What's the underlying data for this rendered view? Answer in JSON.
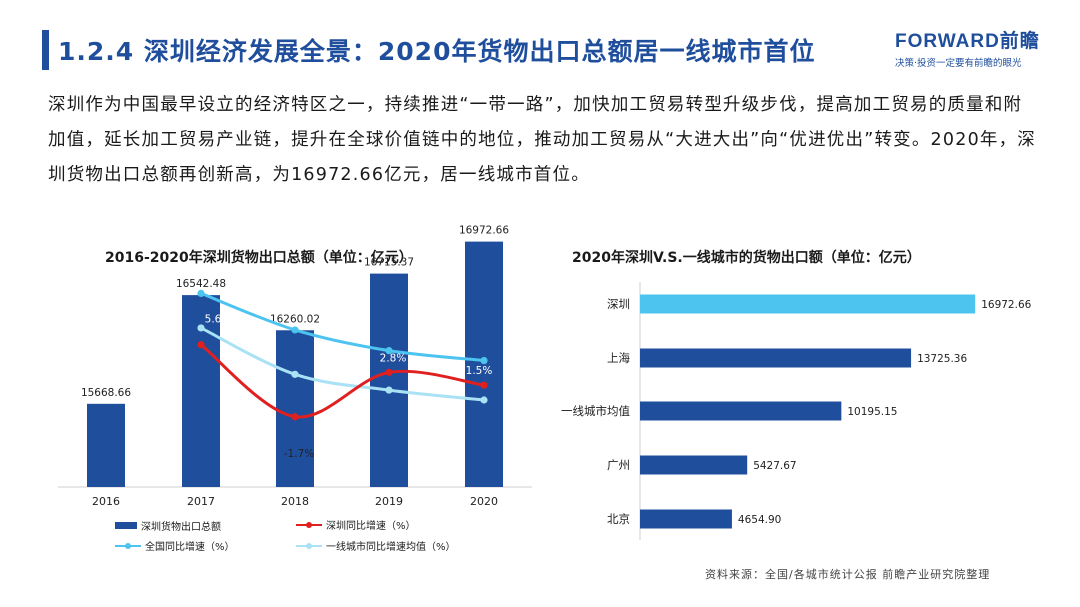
{
  "header": {
    "title": "1.2.4 深圳经济发展全景：2020年货物出口总额居一线城市首位",
    "logo_main": "FORWARD前瞻",
    "logo_sub": "决策·投资一定要有前瞻的眼光"
  },
  "intro": "深圳作为中国最早设立的经济特区之一，持续推进“一带一路”，加快加工贸易转型升级步伐，提高加工贸易的质量和附加值，延长加工贸易产业链，提升在全球价值链中的地位，推动加工贸易从“大进大出”向“优进优出”转变。2020年，深圳货物出口总额再创新高，为16972.66亿元，居一线城市首位。",
  "source": "资料来源：全国/各城市统计公报 前瞻产业研究院整理",
  "colors": {
    "bar": "#1f4e9c",
    "shenzhen_growth": "#e0201f",
    "national_growth": "#4dc4ef",
    "tier1_growth": "#a9e1f5",
    "right_bar": "#4dc4ef"
  },
  "chart_data": [
    {
      "type": "bar",
      "title": "2016-2020年深圳货物出口总额（单位：亿元）",
      "categories": [
        "2016",
        "2017",
        "2018",
        "2019",
        "2020"
      ],
      "series": [
        {
          "name": "深圳货物出口总额",
          "type": "bar",
          "values": [
            15668.66,
            16542.48,
            16260.02,
            16715.37,
            16972.66
          ],
          "labels": [
            "15668.66",
            "16542.48",
            "16260.02",
            "16715.37",
            "16972.66"
          ]
        },
        {
          "name": "深圳同比增速（%）",
          "type": "line",
          "values": [
            null,
            5.6,
            -1.7,
            2.8,
            1.5
          ],
          "labels": [
            "",
            "5.6%",
            "-1.7%",
            "2.8%",
            "1.5%"
          ]
        },
        {
          "name": "全国同比增速（%）",
          "type": "line",
          "values": [
            null,
            10.8,
            7.1,
            5.0,
            4.0
          ],
          "labels": [
            "",
            "",
            "",
            "",
            ""
          ]
        },
        {
          "name": "一线城市同比增速均值（%）",
          "type": "line",
          "values": [
            null,
            7.3,
            2.6,
            1.0,
            0.0
          ],
          "labels": [
            "",
            "",
            "",
            "",
            ""
          ]
        }
      ],
      "legend_placement": "bottom"
    },
    {
      "type": "bar",
      "orientation": "horizontal",
      "title": "2020年深圳V.S.一线城市的货物出口额（单位：亿元）",
      "categories": [
        "深圳",
        "上海",
        "一线城市均值",
        "广州",
        "北京"
      ],
      "values": [
        16972.66,
        13725.36,
        10195.15,
        5427.67,
        4654.9
      ],
      "labels": [
        "16972.66",
        "13725.36",
        "10195.15",
        "5427.67",
        "4654.90"
      ]
    }
  ]
}
